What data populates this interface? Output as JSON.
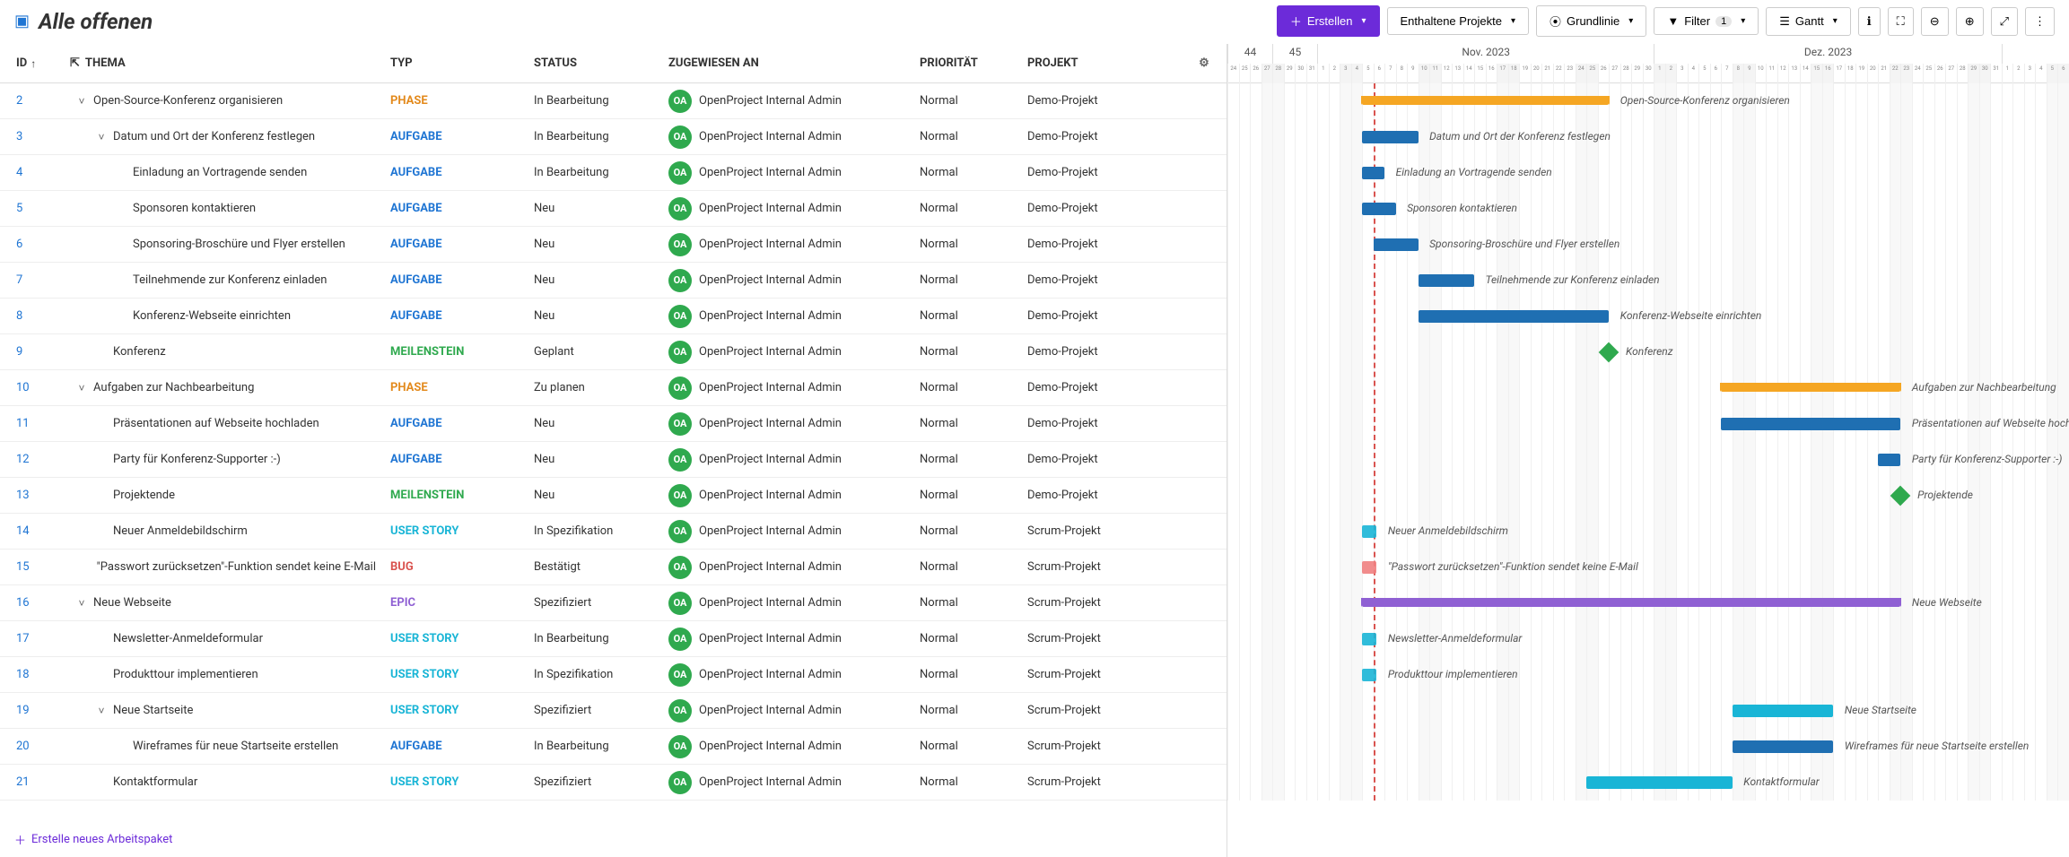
{
  "title": "Alle offenen",
  "toolbar": {
    "create": "Erstellen",
    "projects": "Enthaltene Projekte",
    "baseline": "Grundlinie",
    "filter": "Filter",
    "filter_count": "1",
    "gantt": "Gantt"
  },
  "columns": {
    "id": "ID",
    "subject": "THEMA",
    "type": "TYP",
    "status": "STATUS",
    "assignee": "ZUGEWIESEN AN",
    "prio": "PRIORITÄT",
    "project": "PROJEKT"
  },
  "assignee_name": "OpenProject Internal Admin",
  "assignee_initials": "OA",
  "priority_normal": "Normal",
  "projects": {
    "demo": "Demo-Projekt",
    "scrum": "Scrum-Projekt"
  },
  "footer": "Erstelle neues Arbeitspaket",
  "types": {
    "phase": "PHASE",
    "aufgabe": "AUFGABE",
    "meilenstein": "MEILENSTEIN",
    "userstory": "USER STORY",
    "bug": "BUG",
    "epic": "EPIC"
  },
  "type_colors": {
    "phase": "#e38a1d",
    "aufgabe": "#1f75d3",
    "meilenstein": "#2fa94e",
    "userstory": "#19b5d6",
    "bug": "#d9534f",
    "epic": "#8f60d3"
  },
  "statuses": {
    "in_bearbeitung": "In Bearbeitung",
    "neu": "Neu",
    "geplant": "Geplant",
    "zu_planen": "Zu planen",
    "in_spez": "In Spezifikation",
    "bestatigt": "Bestätigt",
    "spezifiziert": "Spezifiziert"
  },
  "gantt": {
    "months": [
      {
        "label": "Nov. 2023",
        "days": 30,
        "startDay": 1,
        "startCol": 9
      },
      {
        "label": "Dez. 2023",
        "days": 31,
        "startDay": 1,
        "startCol": 39
      }
    ],
    "lead_weeks": [
      "44",
      "45"
    ],
    "trail_days": [
      1,
      2,
      3,
      4,
      5,
      6
    ],
    "total_cols": 75,
    "weekend_pattern_start": 3,
    "today_col": 13,
    "colors": {
      "phase_bar": "#f5a623",
      "task_bar": "#1f6fb2",
      "milestone": "#2fa94e",
      "userstory_bar": "#19b5d6",
      "bug_bar": "#f08080",
      "epic_bar": "#8f60d3"
    }
  },
  "rows": [
    {
      "id": "2",
      "subject": "Open-Source-Konferenz organisieren",
      "indent": 0,
      "expand": true,
      "type": "phase",
      "status": "in_bearbeitung",
      "proj": "demo",
      "bar": {
        "kind": "phase",
        "start": 12,
        "span": 22,
        "color": "phase_bar"
      }
    },
    {
      "id": "3",
      "subject": "Datum und Ort der Konferenz festlegen",
      "indent": 1,
      "expand": true,
      "type": "aufgabe",
      "status": "in_bearbeitung",
      "proj": "demo",
      "bar": {
        "kind": "task",
        "start": 12,
        "span": 5,
        "color": "task_bar"
      }
    },
    {
      "id": "4",
      "subject": "Einladung an Vortragende senden",
      "indent": 2,
      "type": "aufgabe",
      "status": "in_bearbeitung",
      "proj": "demo",
      "bar": {
        "kind": "task",
        "start": 12,
        "span": 2,
        "color": "task_bar"
      }
    },
    {
      "id": "5",
      "subject": "Sponsoren kontaktieren",
      "indent": 2,
      "type": "aufgabe",
      "status": "neu",
      "proj": "demo",
      "bar": {
        "kind": "task",
        "start": 12,
        "span": 3,
        "color": "task_bar"
      }
    },
    {
      "id": "6",
      "subject": "Sponsoring-Broschüre und Flyer erstellen",
      "indent": 2,
      "type": "aufgabe",
      "status": "neu",
      "proj": "demo",
      "bar": {
        "kind": "task",
        "start": 13,
        "span": 4,
        "color": "task_bar"
      }
    },
    {
      "id": "7",
      "subject": "Teilnehmende zur Konferenz einladen",
      "indent": 2,
      "type": "aufgabe",
      "status": "neu",
      "proj": "demo",
      "bar": {
        "kind": "task",
        "start": 17,
        "span": 5,
        "color": "task_bar"
      }
    },
    {
      "id": "8",
      "subject": "Konferenz-Webseite einrichten",
      "indent": 2,
      "type": "aufgabe",
      "status": "neu",
      "proj": "demo",
      "bar": {
        "kind": "task",
        "start": 17,
        "span": 17,
        "color": "task_bar"
      }
    },
    {
      "id": "9",
      "subject": "Konferenz",
      "indent": 1,
      "type": "meilenstein",
      "status": "geplant",
      "proj": "demo",
      "bar": {
        "kind": "milestone",
        "start": 34,
        "color": "milestone"
      }
    },
    {
      "id": "10",
      "subject": "Aufgaben zur Nachbearbeitung",
      "indent": 0,
      "expand": true,
      "type": "phase",
      "status": "zu_planen",
      "proj": "demo",
      "bar": {
        "kind": "phase",
        "start": 44,
        "span": 16,
        "color": "phase_bar"
      }
    },
    {
      "id": "11",
      "subject": "Präsentationen auf Webseite hochladen",
      "indent": 1,
      "type": "aufgabe",
      "status": "neu",
      "proj": "demo",
      "bar": {
        "kind": "task",
        "start": 44,
        "span": 16,
        "color": "task_bar"
      }
    },
    {
      "id": "12",
      "subject": "Party für Konferenz-Supporter :-)",
      "indent": 1,
      "type": "aufgabe",
      "status": "neu",
      "proj": "demo",
      "bar": {
        "kind": "task",
        "start": 58,
        "span": 2,
        "color": "task_bar"
      }
    },
    {
      "id": "13",
      "subject": "Projektende",
      "indent": 1,
      "type": "meilenstein",
      "status": "neu",
      "proj": "demo",
      "bar": {
        "kind": "milestone",
        "start": 60,
        "color": "milestone"
      }
    },
    {
      "id": "14",
      "subject": "Neuer Anmeldebildschirm",
      "indent": 1,
      "type": "userstory",
      "status": "in_spez",
      "proj": "scrum",
      "bar": {
        "kind": "small",
        "start": 12,
        "span": 1.3,
        "color": "userstory_bar"
      }
    },
    {
      "id": "15",
      "subject": "\"Passwort zurücksetzen\"-Funktion sendet keine E-Mail",
      "indent": 1,
      "type": "bug",
      "status": "bestatigt",
      "proj": "scrum",
      "bar": {
        "kind": "small",
        "start": 12,
        "span": 1.3,
        "color": "bug_bar"
      }
    },
    {
      "id": "16",
      "subject": "Neue Webseite",
      "indent": 0,
      "expand": true,
      "type": "epic",
      "status": "spezifiziert",
      "proj": "scrum",
      "bar": {
        "kind": "phase",
        "start": 12,
        "span": 48,
        "color": "epic_bar"
      }
    },
    {
      "id": "17",
      "subject": "Newsletter-Anmeldeformular",
      "indent": 1,
      "type": "userstory",
      "status": "in_bearbeitung",
      "proj": "scrum",
      "bar": {
        "kind": "small",
        "start": 12,
        "span": 1.3,
        "color": "userstory_bar"
      }
    },
    {
      "id": "18",
      "subject": "Produkttour implementieren",
      "indent": 1,
      "type": "userstory",
      "status": "in_spez",
      "proj": "scrum",
      "bar": {
        "kind": "small",
        "start": 12,
        "span": 1.3,
        "color": "userstory_bar"
      }
    },
    {
      "id": "19",
      "subject": "Neue Startseite",
      "indent": 1,
      "expand": true,
      "type": "userstory",
      "status": "spezifiziert",
      "proj": "scrum",
      "bar": {
        "kind": "task",
        "start": 45,
        "span": 9,
        "color": "userstory_bar"
      }
    },
    {
      "id": "20",
      "subject": "Wireframes für neue Startseite erstellen",
      "indent": 2,
      "type": "aufgabe",
      "status": "in_bearbeitung",
      "proj": "scrum",
      "bar": {
        "kind": "task",
        "start": 45,
        "span": 9,
        "color": "task_bar"
      }
    },
    {
      "id": "21",
      "subject": "Kontaktformular",
      "indent": 1,
      "type": "userstory",
      "status": "spezifiziert",
      "proj": "scrum",
      "bar": {
        "kind": "task",
        "start": 32,
        "span": 13,
        "color": "userstory_bar"
      }
    }
  ]
}
